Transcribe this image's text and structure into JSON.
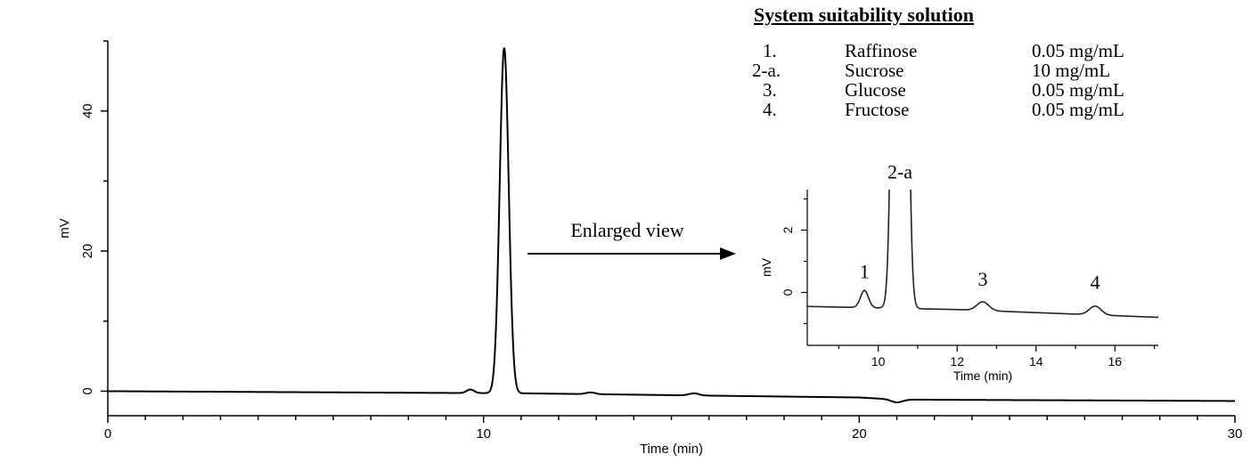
{
  "chart_data": [
    {
      "id": "main",
      "type": "line",
      "xlabel": "Time (min)",
      "ylabel": "mV",
      "xlim": [
        0,
        30
      ],
      "ylim": [
        -3.5,
        50
      ],
      "xticks": [
        0,
        10,
        20,
        30
      ],
      "yticks": [
        0,
        20,
        40
      ],
      "trace": {
        "baseline": [
          [
            0,
            0
          ],
          [
            9,
            -0.25
          ],
          [
            11,
            -0.3
          ],
          [
            20,
            -0.9
          ],
          [
            21,
            -1.2
          ],
          [
            30,
            -1.4
          ]
        ],
        "peaks": [
          {
            "t": 9.65,
            "height": 0.5,
            "width": 0.1
          },
          {
            "t": 10.55,
            "height": 49.3,
            "width": 0.12
          },
          {
            "t": 12.85,
            "height": 0.25,
            "width": 0.12
          },
          {
            "t": 15.6,
            "height": 0.3,
            "width": 0.13
          },
          {
            "t": 21.0,
            "height": -0.4,
            "width": 0.15
          }
        ]
      },
      "annotation": {
        "text": "Enlarged view"
      }
    },
    {
      "id": "inset",
      "type": "line",
      "xlabel": "Time (min)",
      "ylabel": "mV",
      "xlim": [
        8.2,
        17.1
      ],
      "ylim": [
        -1.7,
        3.3
      ],
      "xticks": [
        10,
        12,
        14,
        16
      ],
      "yticks": [
        0,
        2
      ],
      "trace": {
        "baseline": [
          [
            8.2,
            -0.45
          ],
          [
            12,
            -0.55
          ],
          [
            17.1,
            -0.8
          ]
        ],
        "peaks": [
          {
            "t": 9.65,
            "height": 0.55,
            "width": 0.1
          },
          {
            "t": 10.55,
            "height": 49.3,
            "width": 0.12
          },
          {
            "t": 12.65,
            "height": 0.28,
            "width": 0.15
          },
          {
            "t": 15.5,
            "height": 0.28,
            "width": 0.15
          }
        ]
      },
      "peak_labels": [
        {
          "text": "1",
          "t": 9.65,
          "mv": 0.35
        },
        {
          "text": "2-a",
          "t": 10.55,
          "mv": 3.55
        },
        {
          "text": "3",
          "t": 12.65,
          "mv": 0.1
        },
        {
          "text": "4",
          "t": 15.5,
          "mv": 0.0
        }
      ]
    }
  ],
  "legend": {
    "title": "System suitability solution",
    "items": [
      {
        "num": "1.",
        "name": "Raffinose",
        "conc": "0.05  mg/mL"
      },
      {
        "num": "2-a.",
        "name": "Sucrose",
        "conc": "10  mg/mL"
      },
      {
        "num": "3.",
        "name": "Glucose",
        "conc": "0.05  mg/mL"
      },
      {
        "num": "4.",
        "name": "Fructose",
        "conc": "0.05  mg/mL"
      }
    ]
  }
}
